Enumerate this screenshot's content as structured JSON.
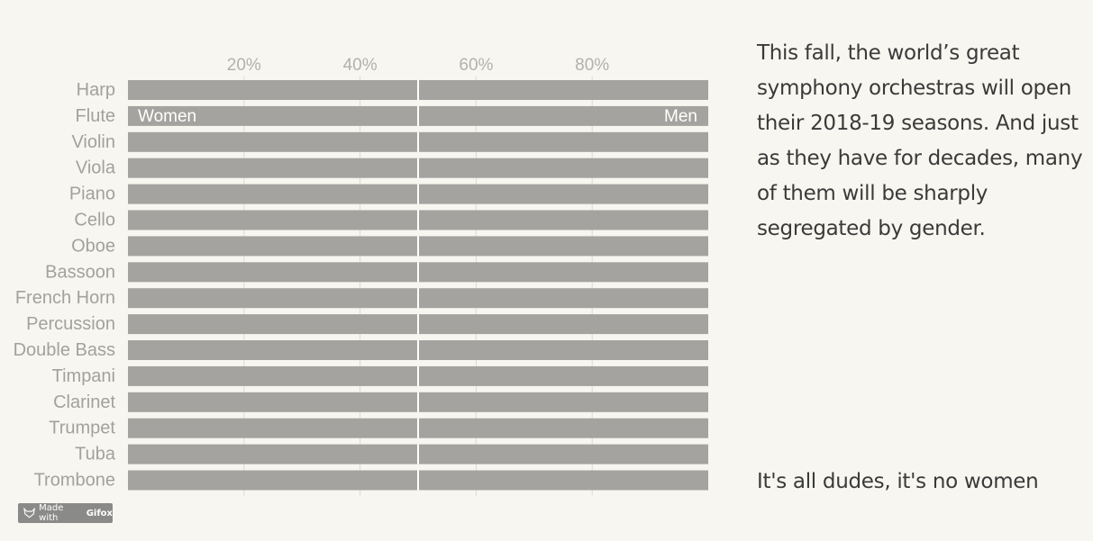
{
  "chart_data": {
    "type": "bar",
    "orientation": "horizontal",
    "stacked": true,
    "categories": [
      "Harp",
      "Flute",
      "Violin",
      "Viola",
      "Piano",
      "Cello",
      "Oboe",
      "Bassoon",
      "French Horn",
      "Percussion",
      "Double Bass",
      "Timpani",
      "Clarinet",
      "Trumpet",
      "Tuba",
      "Trombone"
    ],
    "series": [
      {
        "name": "Women",
        "values": [
          50,
          50,
          50,
          50,
          50,
          50,
          50,
          50,
          50,
          50,
          50,
          50,
          50,
          50,
          50,
          50
        ]
      },
      {
        "name": "Men",
        "values": [
          50,
          50,
          50,
          50,
          50,
          50,
          50,
          50,
          50,
          50,
          50,
          50,
          50,
          50,
          50,
          50
        ]
      }
    ],
    "x_ticks": [
      "20%",
      "40%",
      "60%",
      "80%"
    ],
    "xlim": [
      0,
      100
    ],
    "bar_color": "#a4a39f",
    "divider_color": "#ffffff",
    "grid": true
  },
  "narrative": {
    "intro": "This fall, the world’s great symphony orchestras will open their 2018-19 seasons. And just as they have for decades, many of them will be sharply segregated by gender.",
    "caption": "It's all dudes, it's no women"
  },
  "badge": {
    "prefix": "Made with",
    "brand": "Gifox",
    "icon": "fox-icon"
  }
}
